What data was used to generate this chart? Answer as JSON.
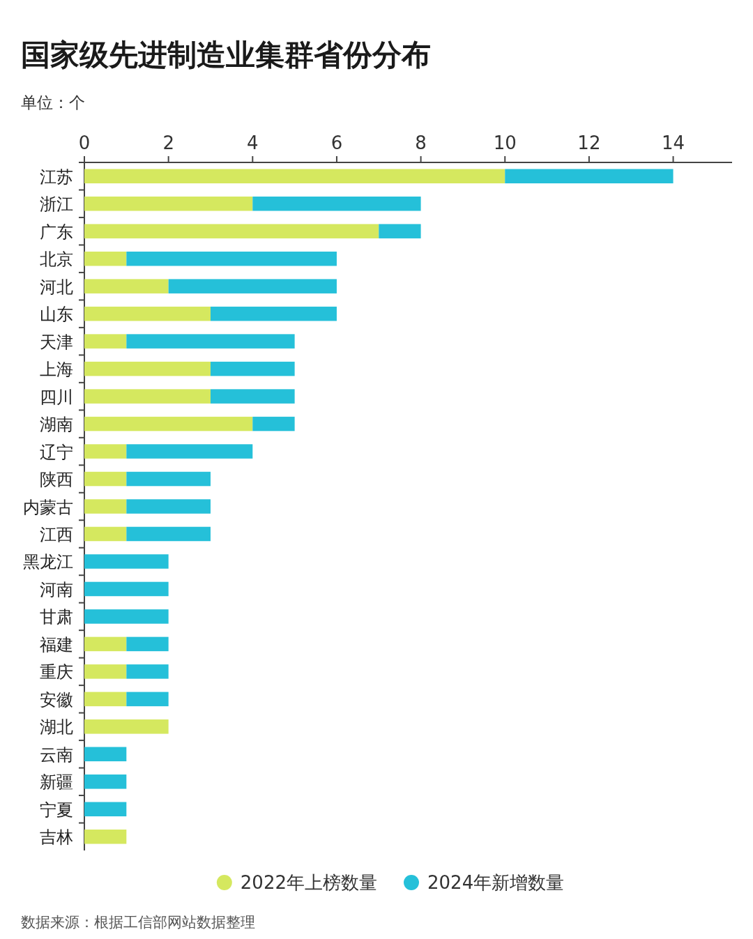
{
  "chart_data": {
    "type": "bar",
    "orientation": "horizontal",
    "stacked": true,
    "title": "国家级先进制造业集群省份分布",
    "subtitle": "单位：个",
    "categories": [
      "江苏",
      "浙江",
      "广东",
      "北京",
      "河北",
      "山东",
      "天津",
      "上海",
      "四川",
      "湖南",
      "辽宁",
      "陕西",
      "内蒙古",
      "江西",
      "黑龙江",
      "河南",
      "甘肃",
      "福建",
      "重庆",
      "安徽",
      "湖北",
      "云南",
      "新疆",
      "宁夏",
      "吉林"
    ],
    "series": [
      {
        "name": "2022年上榜数量",
        "color": "#d5e85f",
        "values": [
          10,
          4,
          7,
          1,
          2,
          3,
          1,
          3,
          3,
          4,
          1,
          1,
          1,
          1,
          0,
          0,
          0,
          1,
          1,
          1,
          2,
          0,
          0,
          0,
          1
        ]
      },
      {
        "name": "2024年新增数量",
        "color": "#25c0d9",
        "values": [
          4,
          4,
          1,
          5,
          4,
          3,
          4,
          2,
          2,
          1,
          3,
          2,
          2,
          2,
          2,
          2,
          2,
          1,
          1,
          1,
          0,
          1,
          1,
          1,
          0
        ]
      }
    ],
    "xlim": [
      0,
      15.4
    ],
    "xticks": [
      0,
      2,
      4,
      6,
      8,
      10,
      12,
      14
    ],
    "legend": "bottom",
    "grid": false,
    "annotations": [
      "数据来源：根据工信部网站数据整理"
    ]
  }
}
